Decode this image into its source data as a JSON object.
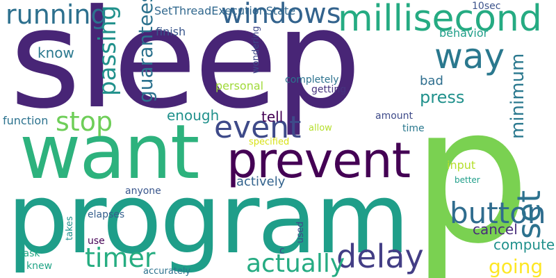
{
  "words": [
    {
      "t": "sleep",
      "c": "#482576"
    },
    {
      "t": "p",
      "c": "#7ad151"
    },
    {
      "t": "program",
      "c": "#1f9e89"
    },
    {
      "t": "want",
      "c": "#2db27d"
    },
    {
      "t": "prevent",
      "c": "#440154"
    },
    {
      "t": "millisecond",
      "c": "#25ab82"
    },
    {
      "t": "way",
      "c": "#2a788e"
    },
    {
      "t": "windows",
      "c": "#2c728e"
    },
    {
      "t": "running",
      "c": "#33638d"
    },
    {
      "t": "event",
      "c": "#2d708e"
    },
    {
      "t": "delay",
      "c": "#3e4a89"
    },
    {
      "t": "actually",
      "c": "#433e85"
    },
    {
      "t": "timer",
      "c": "#25ab82"
    },
    {
      "t": "stop",
      "c": "#26ad81"
    },
    {
      "t": "button",
      "c": "#6ece58"
    },
    {
      "t": "press",
      "c": "#2f6c8e"
    },
    {
      "t": "going",
      "c": "#21918c"
    },
    {
      "t": "computer",
      "c": "#2c728e"
    },
    {
      "t": "cancel",
      "c": "#2a788e"
    },
    {
      "t": "actively",
      "c": "#21918c"
    },
    {
      "t": "tell",
      "c": "#fde725"
    },
    {
      "t": "enough",
      "c": "#21918c"
    },
    {
      "t": "know",
      "c": "#472d7b"
    },
    {
      "t": "SetThreadExecutionState",
      "c": "#33638d"
    },
    {
      "t": "behavior",
      "c": "#440154"
    },
    {
      "t": "10sec",
      "c": "#21918c"
    },
    {
      "t": "finish",
      "c": "#2a788e"
    },
    {
      "t": "personal",
      "c": "#31688e"
    },
    {
      "t": "completely",
      "c": "#1f9e89"
    },
    {
      "t": "getting",
      "c": "#3b528b"
    },
    {
      "t": "bad",
      "c": "#39568c"
    },
    {
      "t": "function",
      "c": "#3e4989"
    },
    {
      "t": "allow",
      "c": "#a0da39"
    },
    {
      "t": "specified",
      "c": "#2c728e"
    },
    {
      "t": "amount",
      "c": "#46337e"
    },
    {
      "t": "time",
      "c": "#2e6e8e"
    },
    {
      "t": "input",
      "c": "#2c728e"
    },
    {
      "t": "better",
      "c": "#b5de2b"
    },
    {
      "t": "anyone",
      "c": "#d8e219"
    },
    {
      "t": "elapses",
      "c": "#3e4a89"
    },
    {
      "t": "use",
      "c": "#2a788e"
    },
    {
      "t": "task",
      "c": "#b5de2b"
    },
    {
      "t": "knew",
      "c": "#1f9e89"
    },
    {
      "t": "c",
      "c": "#39568c"
    },
    {
      "t": "accurately",
      "c": "#21918c"
    },
    {
      "t": "set",
      "c": "#355f8d"
    },
    {
      "t": "minimum",
      "c": "#440154"
    },
    {
      "t": "passing",
      "c": "#3e4989"
    },
    {
      "t": "guarantees",
      "c": "#22a884"
    },
    {
      "t": "wondering",
      "c": "#20a486"
    },
    {
      "t": "takes",
      "c": "#3e4989"
    },
    {
      "t": "used",
      "c": "#2c728e"
    }
  ]
}
